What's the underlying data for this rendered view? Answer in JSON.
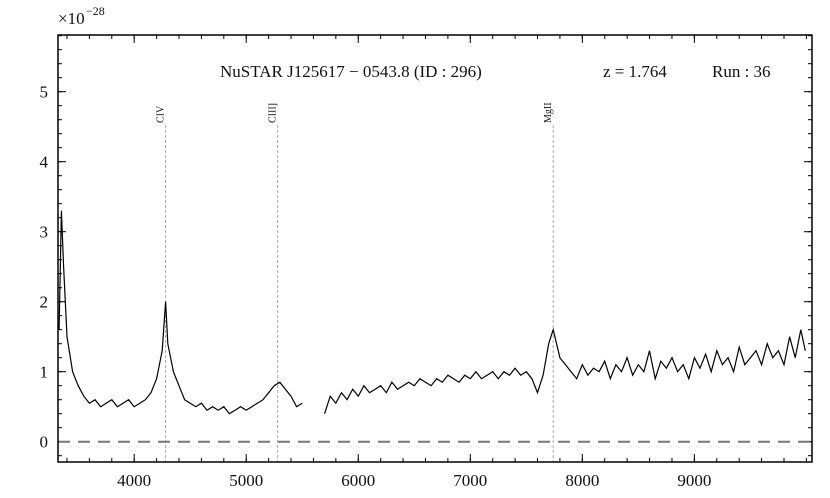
{
  "chart_data": {
    "type": "line",
    "annotations": [
      "NuSTAR J125617 − 0543.8 (ID : 296)",
      "z = 1.764",
      "Run : 36"
    ],
    "y_offset_text": {
      "base": "×10",
      "exponent": "−28"
    },
    "x": [
      3330,
      3350,
      3370,
      3400,
      3450,
      3500,
      3550,
      3600,
      3650,
      3700,
      3750,
      3800,
      3850,
      3900,
      3950,
      4000,
      4050,
      4100,
      4150,
      4200,
      4250,
      4280,
      4300,
      4350,
      4400,
      4450,
      4500,
      4550,
      4600,
      4650,
      4700,
      4750,
      4800,
      4850,
      4900,
      4950,
      5000,
      5050,
      5100,
      5150,
      5200,
      5250,
      5300,
      5350,
      5400,
      5450,
      5500,
      5600,
      5700,
      5750,
      5800,
      5850,
      5900,
      5950,
      6000,
      6050,
      6100,
      6150,
      6200,
      6250,
      6300,
      6350,
      6400,
      6450,
      6500,
      6550,
      6600,
      6650,
      6700,
      6750,
      6800,
      6850,
      6900,
      6950,
      7000,
      7050,
      7100,
      7150,
      7200,
      7250,
      7300,
      7350,
      7400,
      7450,
      7500,
      7550,
      7600,
      7650,
      7700,
      7740,
      7800,
      7850,
      7900,
      7950,
      8000,
      8050,
      8100,
      8150,
      8200,
      8250,
      8300,
      8350,
      8400,
      8450,
      8500,
      8550,
      8600,
      8650,
      8700,
      8750,
      8800,
      8850,
      8900,
      8950,
      9000,
      9050,
      9100,
      9150,
      9200,
      9250,
      9300,
      9350,
      9400,
      9450,
      9500,
      9550,
      9600,
      9650,
      9700,
      9750,
      9800,
      9850,
      9900,
      9950,
      9990
    ],
    "series": [
      {
        "color": "#000000",
        "values": [
          1.6,
          3.3,
          2.5,
          1.5,
          1.0,
          0.8,
          0.65,
          0.55,
          0.6,
          0.5,
          0.55,
          0.6,
          0.5,
          0.55,
          0.6,
          0.5,
          0.55,
          0.6,
          0.7,
          0.9,
          1.3,
          2.0,
          1.4,
          1.0,
          0.8,
          0.6,
          0.55,
          0.5,
          0.55,
          0.45,
          0.5,
          0.45,
          0.5,
          0.4,
          0.45,
          0.5,
          0.45,
          0.5,
          0.55,
          0.6,
          0.7,
          0.8,
          0.85,
          0.75,
          0.65,
          0.5,
          0.55,
          null,
          0.4,
          0.65,
          0.55,
          0.7,
          0.6,
          0.75,
          0.65,
          0.8,
          0.7,
          0.75,
          0.8,
          0.7,
          0.85,
          0.75,
          0.8,
          0.85,
          0.8,
          0.9,
          0.85,
          0.8,
          0.9,
          0.85,
          0.95,
          0.9,
          0.85,
          0.95,
          0.9,
          1.0,
          0.9,
          0.95,
          1.0,
          0.9,
          1.0,
          0.95,
          1.05,
          0.95,
          1.0,
          0.9,
          0.7,
          0.95,
          1.4,
          1.6,
          1.2,
          1.1,
          1.0,
          0.9,
          1.1,
          0.95,
          1.05,
          1.0,
          1.15,
          0.9,
          1.1,
          1.0,
          1.2,
          0.95,
          1.1,
          1.0,
          1.3,
          0.9,
          1.15,
          1.05,
          1.2,
          1.0,
          1.1,
          0.9,
          1.2,
          1.05,
          1.25,
          1.0,
          1.3,
          1.1,
          1.2,
          1.0,
          1.35,
          1.1,
          1.2,
          1.3,
          1.1,
          1.4,
          1.2,
          1.3,
          1.1,
          1.5,
          1.2,
          1.6,
          1.3
        ]
      }
    ],
    "lines": [
      {
        "x": 4280,
        "label": "CIV"
      },
      {
        "x": 5280,
        "label": "CIII]"
      },
      {
        "x": 7740,
        "label": "MgII"
      }
    ],
    "reference_line": 0,
    "xlim": [
      3320,
      10050
    ],
    "ylim": [
      -0.29,
      5.81
    ],
    "xticks": [
      4000,
      5000,
      6000,
      7000,
      8000,
      9000
    ],
    "yticks": [
      0,
      1,
      2,
      3,
      4,
      5
    ]
  }
}
